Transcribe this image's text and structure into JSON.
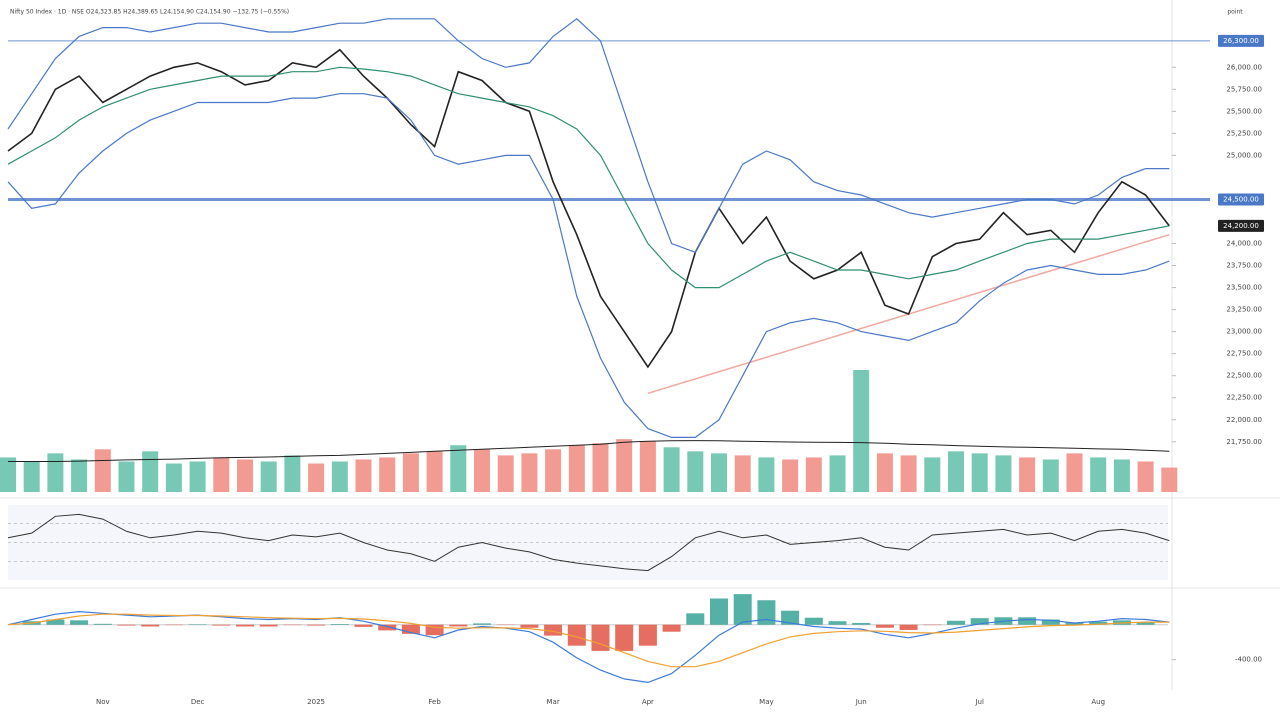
{
  "chart_data": [
    {
      "type": "line",
      "title": "Nifty 50 Index · 1D · NSE  O24,323.85 H24,389.65 L24,154.90 C24,154.90 −132.75 (−0.55%)",
      "unit": "point",
      "categories": [
        null,
        null,
        null,
        null,
        "Nov",
        null,
        null,
        null,
        "Dec",
        null,
        null,
        null,
        null,
        "2025",
        null,
        null,
        null,
        null,
        "Feb",
        null,
        null,
        null,
        null,
        "Mar",
        null,
        null,
        null,
        "Apr",
        null,
        null,
        null,
        null,
        "May",
        null,
        null,
        null,
        "Jun",
        null,
        null,
        null,
        null,
        "Jul",
        null,
        null,
        null,
        null,
        "Aug",
        null,
        null,
        null
      ],
      "series": [
        {
          "color": "#222222",
          "width": 1.6,
          "values": [
            25050,
            25250,
            25750,
            25900,
            25600,
            25750,
            25900,
            26000,
            26050,
            25950,
            25800,
            25850,
            26050,
            26000,
            26200,
            25900,
            25650,
            25350,
            25100,
            25950,
            25850,
            25600,
            25500,
            24700,
            24100,
            23400,
            23000,
            22600,
            23000,
            23900,
            24400,
            24000,
            24300,
            23800,
            23600,
            23700,
            23900,
            23300,
            23200,
            23850,
            24000,
            24050,
            24350,
            24100,
            24150,
            23900,
            24350,
            24700,
            24550,
            24200
          ]
        },
        {
          "color": "#4a78c8",
          "width": 1.2,
          "values": [
            25300,
            25700,
            26100,
            26350,
            26450,
            26450,
            26400,
            26450,
            26500,
            26500,
            26450,
            26400,
            26400,
            26450,
            26500,
            26500,
            26550,
            26550,
            26550,
            26300,
            26100,
            26000,
            26050,
            26350,
            26550,
            26300,
            25500,
            24700,
            24000,
            23900,
            24400,
            24900,
            25050,
            24950,
            24700,
            24600,
            24550,
            24450,
            24350,
            24300,
            24350,
            24400,
            24450,
            24500,
            24500,
            24450,
            24550,
            24750,
            24850,
            24850
          ]
        },
        {
          "color": "#2f8f6f",
          "width": 1.2,
          "values": [
            24900,
            25050,
            25200,
            25400,
            25550,
            25650,
            25750,
            25800,
            25850,
            25900,
            25900,
            25900,
            25950,
            25950,
            26000,
            25980,
            25950,
            25900,
            25800,
            25700,
            25650,
            25600,
            25550,
            25450,
            25300,
            25000,
            24500,
            24000,
            23700,
            23500,
            23500,
            23650,
            23800,
            23900,
            23800,
            23700,
            23700,
            23650,
            23600,
            23650,
            23700,
            23800,
            23900,
            24000,
            24050,
            24050,
            24050,
            24100,
            24150,
            24200
          ]
        },
        {
          "color": "#4a78c8",
          "width": 1.2,
          "values": [
            24700,
            24400,
            24450,
            24800,
            25050,
            25250,
            25400,
            25500,
            25600,
            25600,
            25600,
            25600,
            25650,
            25650,
            25700,
            25700,
            25650,
            25400,
            25000,
            24900,
            24950,
            25000,
            25000,
            24500,
            23400,
            22700,
            22200,
            21900,
            21800,
            21800,
            22000,
            22500,
            23000,
            23100,
            23150,
            23100,
            23000,
            22950,
            22900,
            23000,
            23100,
            23350,
            23550,
            23700,
            23750,
            23700,
            23650,
            23650,
            23700,
            23800
          ]
        }
      ],
      "ylim": [
        21600,
        26650
      ],
      "yticks": [
        {
          "value": 21750,
          "label": "21,750.00"
        },
        {
          "value": 22000,
          "label": "22,000.00"
        },
        {
          "value": 22250,
          "label": "22,250.00"
        },
        {
          "value": 22500,
          "label": "22,500.00"
        },
        {
          "value": 22750,
          "label": "22,750.00"
        },
        {
          "value": 23000,
          "label": "23,000.00"
        },
        {
          "value": 23250,
          "label": "23,250.00"
        },
        {
          "value": 23500,
          "label": "23,500.00"
        },
        {
          "value": 23750,
          "label": "23,750.00"
        },
        {
          "value": 24000,
          "label": "24,000.00"
        },
        {
          "value": 25000,
          "label": "25,000.00"
        },
        {
          "value": 25250,
          "label": "25,250.00"
        },
        {
          "value": 25500,
          "label": "25,500.00"
        },
        {
          "value": 25750,
          "label": "25,750.00"
        },
        {
          "value": 26000,
          "label": "26,000.00"
        }
      ],
      "hlines": [
        {
          "value": 26300,
          "label": "26,300.00",
          "color": "#4a78c8"
        },
        {
          "value": 24500,
          "label": "24,500.00",
          "color": "#4a78c8"
        }
      ],
      "trendline": {
        "x": [
          27,
          49
        ],
        "values": [
          22300,
          24100
        ],
        "color": "#f0a8a0"
      },
      "last_label": "24,200.00"
    },
    {
      "type": "bar",
      "values": [
        170,
        150,
        190,
        160,
        210,
        150,
        200,
        140,
        150,
        170,
        160,
        150,
        180,
        140,
        150,
        160,
        170,
        190,
        200,
        230,
        210,
        180,
        190,
        210,
        230,
        240,
        260,
        250,
        220,
        200,
        190,
        180,
        170,
        160,
        170,
        180,
        600,
        190,
        180,
        170,
        200,
        190,
        180,
        170,
        160,
        190,
        170,
        160,
        150,
        120
      ],
      "ma_values": [
        150,
        150,
        150,
        152,
        155,
        158,
        160,
        162,
        165,
        168,
        170,
        172,
        175,
        178,
        180,
        185,
        190,
        195,
        200,
        205,
        210,
        215,
        220,
        225,
        230,
        235,
        245,
        250,
        252,
        253,
        252,
        250,
        248,
        246,
        245,
        244,
        243,
        240,
        235,
        232,
        228,
        225,
        222,
        220,
        218,
        215,
        212,
        210,
        205,
        200
      ],
      "ylim": [
        0,
        600
      ],
      "up_color": "#5fbfa8",
      "down_color": "#f08a80",
      "ma_color": "#222222"
    },
    {
      "type": "line",
      "values": [
        55,
        60,
        78,
        80,
        75,
        62,
        55,
        58,
        62,
        60,
        55,
        52,
        58,
        56,
        60,
        50,
        42,
        38,
        30,
        45,
        50,
        44,
        40,
        32,
        28,
        25,
        22,
        20,
        35,
        55,
        62,
        55,
        58,
        48,
        50,
        52,
        55,
        45,
        42,
        58,
        60,
        62,
        64,
        58,
        60,
        52,
        62,
        64,
        60,
        52
      ],
      "color": "#333333",
      "ylim": [
        10,
        90
      ],
      "levels": [
        70,
        50,
        30
      ]
    },
    {
      "type": "combo",
      "values": [
        0,
        40,
        60,
        50,
        10,
        -10,
        -20,
        -5,
        5,
        -10,
        -20,
        -20,
        -5,
        -10,
        8,
        -25,
        -65,
        -105,
        -120,
        -20,
        15,
        -4,
        -35,
        -125,
        -240,
        -300,
        -300,
        -240,
        -80,
        130,
        300,
        350,
        280,
        160,
        80,
        40,
        20,
        -35,
        -60,
        -5,
        45,
        75,
        85,
        85,
        60,
        25,
        35,
        50,
        30,
        0
      ],
      "up_color": "#2a9d8f",
      "down_color": "#e04a3a",
      "series": [
        {
          "color": "#3d7bd9",
          "width": 1.2,
          "values": [
            0,
            60,
            120,
            150,
            130,
            110,
            90,
            100,
            110,
            90,
            70,
            60,
            70,
            60,
            80,
            40,
            -20,
            -90,
            -150,
            -60,
            -20,
            -40,
            -80,
            -200,
            -380,
            -520,
            -620,
            -660,
            -560,
            -350,
            -120,
            30,
            60,
            20,
            -20,
            -40,
            -50,
            -110,
            -150,
            -100,
            -40,
            10,
            40,
            60,
            50,
            20,
            40,
            70,
            60,
            30
          ]
        },
        {
          "color": "#f0a030",
          "width": 1.2,
          "values": [
            0,
            20,
            60,
            100,
            120,
            120,
            110,
            105,
            105,
            100,
            90,
            80,
            75,
            70,
            72,
            65,
            45,
            15,
            -30,
            -40,
            -35,
            -36,
            -45,
            -75,
            -140,
            -220,
            -320,
            -420,
            -480,
            -480,
            -420,
            -320,
            -220,
            -140,
            -100,
            -80,
            -70,
            -75,
            -90,
            -95,
            -85,
            -65,
            -45,
            -25,
            -10,
            -5,
            5,
            20,
            30,
            30
          ]
        }
      ],
      "ylim": [
        -690,
        340
      ],
      "yticks": [
        {
          "value": -400,
          "label": "-400.00"
        }
      ]
    }
  ]
}
